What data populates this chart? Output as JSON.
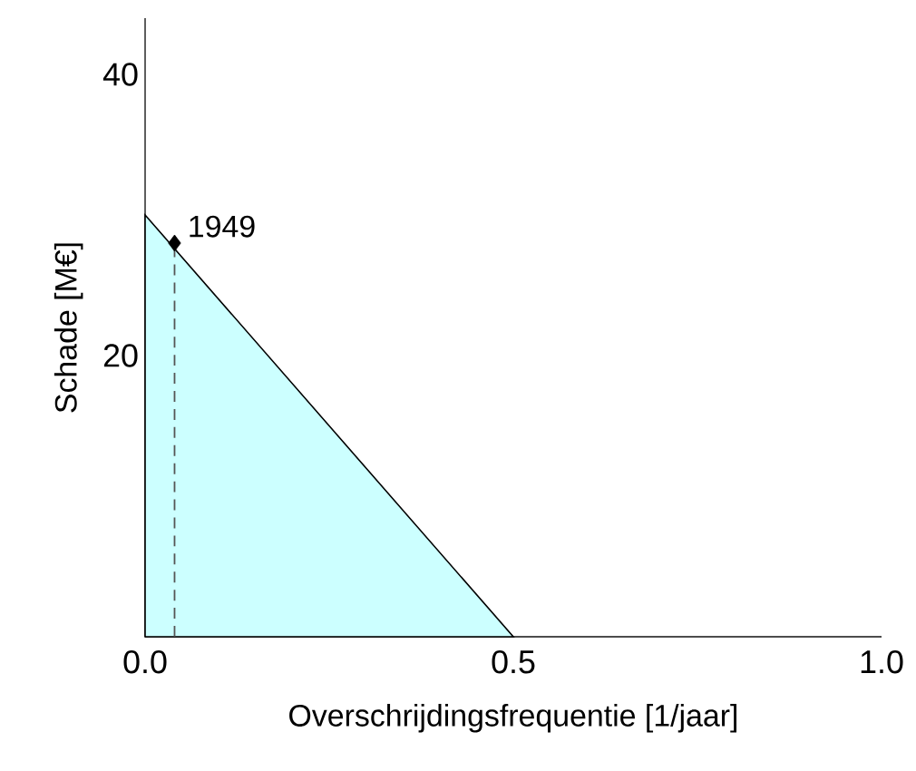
{
  "chart_data": {
    "type": "area",
    "xlabel": "Overschrijdingsfrequentie [1/jaar]",
    "ylabel": "Schade [M€]",
    "xlim": [
      0,
      1
    ],
    "ylim": [
      0,
      44
    ],
    "xticks": [
      {
        "value": 0,
        "label": "0.0"
      },
      {
        "value": 0.5,
        "label": "0.5"
      },
      {
        "value": 1,
        "label": "1.0"
      }
    ],
    "yticks": [
      20,
      40
    ],
    "series": [
      {
        "color": "#ccffff",
        "x": [
          0,
          0.5
        ],
        "values": [
          30,
          0
        ]
      },
      {
        "type": "line",
        "color": "#555555",
        "line_style": "dashed",
        "x": [
          0.04,
          0.04
        ],
        "values": [
          0,
          28
        ]
      },
      {
        "type": "scatter",
        "color": "#000000",
        "marker": "diamond",
        "x": [
          0.04
        ],
        "values": [
          28
        ]
      }
    ],
    "annotations": [
      {
        "text": "1949",
        "x": 0.04,
        "y": 28
      }
    ]
  }
}
